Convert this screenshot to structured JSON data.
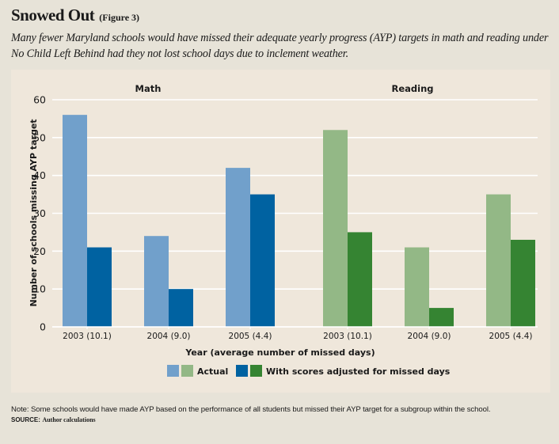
{
  "header": {
    "title": "Snowed Out",
    "figure_label": "(Figure 3)",
    "subtitle": "Many fewer Maryland schools would have missed their adequate yearly progress (AYP) targets in math and reading under No Child Left Behind had they not lost school days due to inclement weather."
  },
  "footer": {
    "note": "Note: Some schools would have made AYP based on the performance of all students but missed their AYP target for a subgroup within the school.",
    "source_label": "SOURCE:",
    "source_value": "Author calculations"
  },
  "chart_data": {
    "type": "bar",
    "title": "Snowed Out (Figure 3)",
    "xlabel": "Year (average number of missed days)",
    "ylabel": "Number of schools missing AYP target",
    "ylim": [
      0,
      60
    ],
    "yticks": [
      0,
      10,
      20,
      30,
      40,
      50,
      60
    ],
    "grid": true,
    "legend_position": "bottom-center",
    "legend": [
      {
        "label": "Actual",
        "colors": [
          "#71a0cb",
          "#93b886"
        ]
      },
      {
        "label": "With scores adjusted for missed days",
        "colors": [
          "#0062a1",
          "#358432"
        ]
      }
    ],
    "panels": [
      {
        "name": "Math",
        "categories": [
          "2003 (10.1)",
          "2004 (9.0)",
          "2005 (4.4)"
        ],
        "series": [
          {
            "name": "Actual",
            "color": "#71a0cb",
            "values": [
              56,
              24,
              42
            ]
          },
          {
            "name": "With scores adjusted for missed days",
            "color": "#0062a1",
            "values": [
              21,
              10,
              35
            ]
          }
        ]
      },
      {
        "name": "Reading",
        "categories": [
          "2003 (10.1)",
          "2004 (9.0)",
          "2005 (4.4)"
        ],
        "series": [
          {
            "name": "Actual",
            "color": "#93b886",
            "values": [
              52,
              21,
              35
            ]
          },
          {
            "name": "With scores adjusted for missed days",
            "color": "#358432",
            "values": [
              25,
              5,
              23
            ]
          }
        ]
      }
    ]
  }
}
